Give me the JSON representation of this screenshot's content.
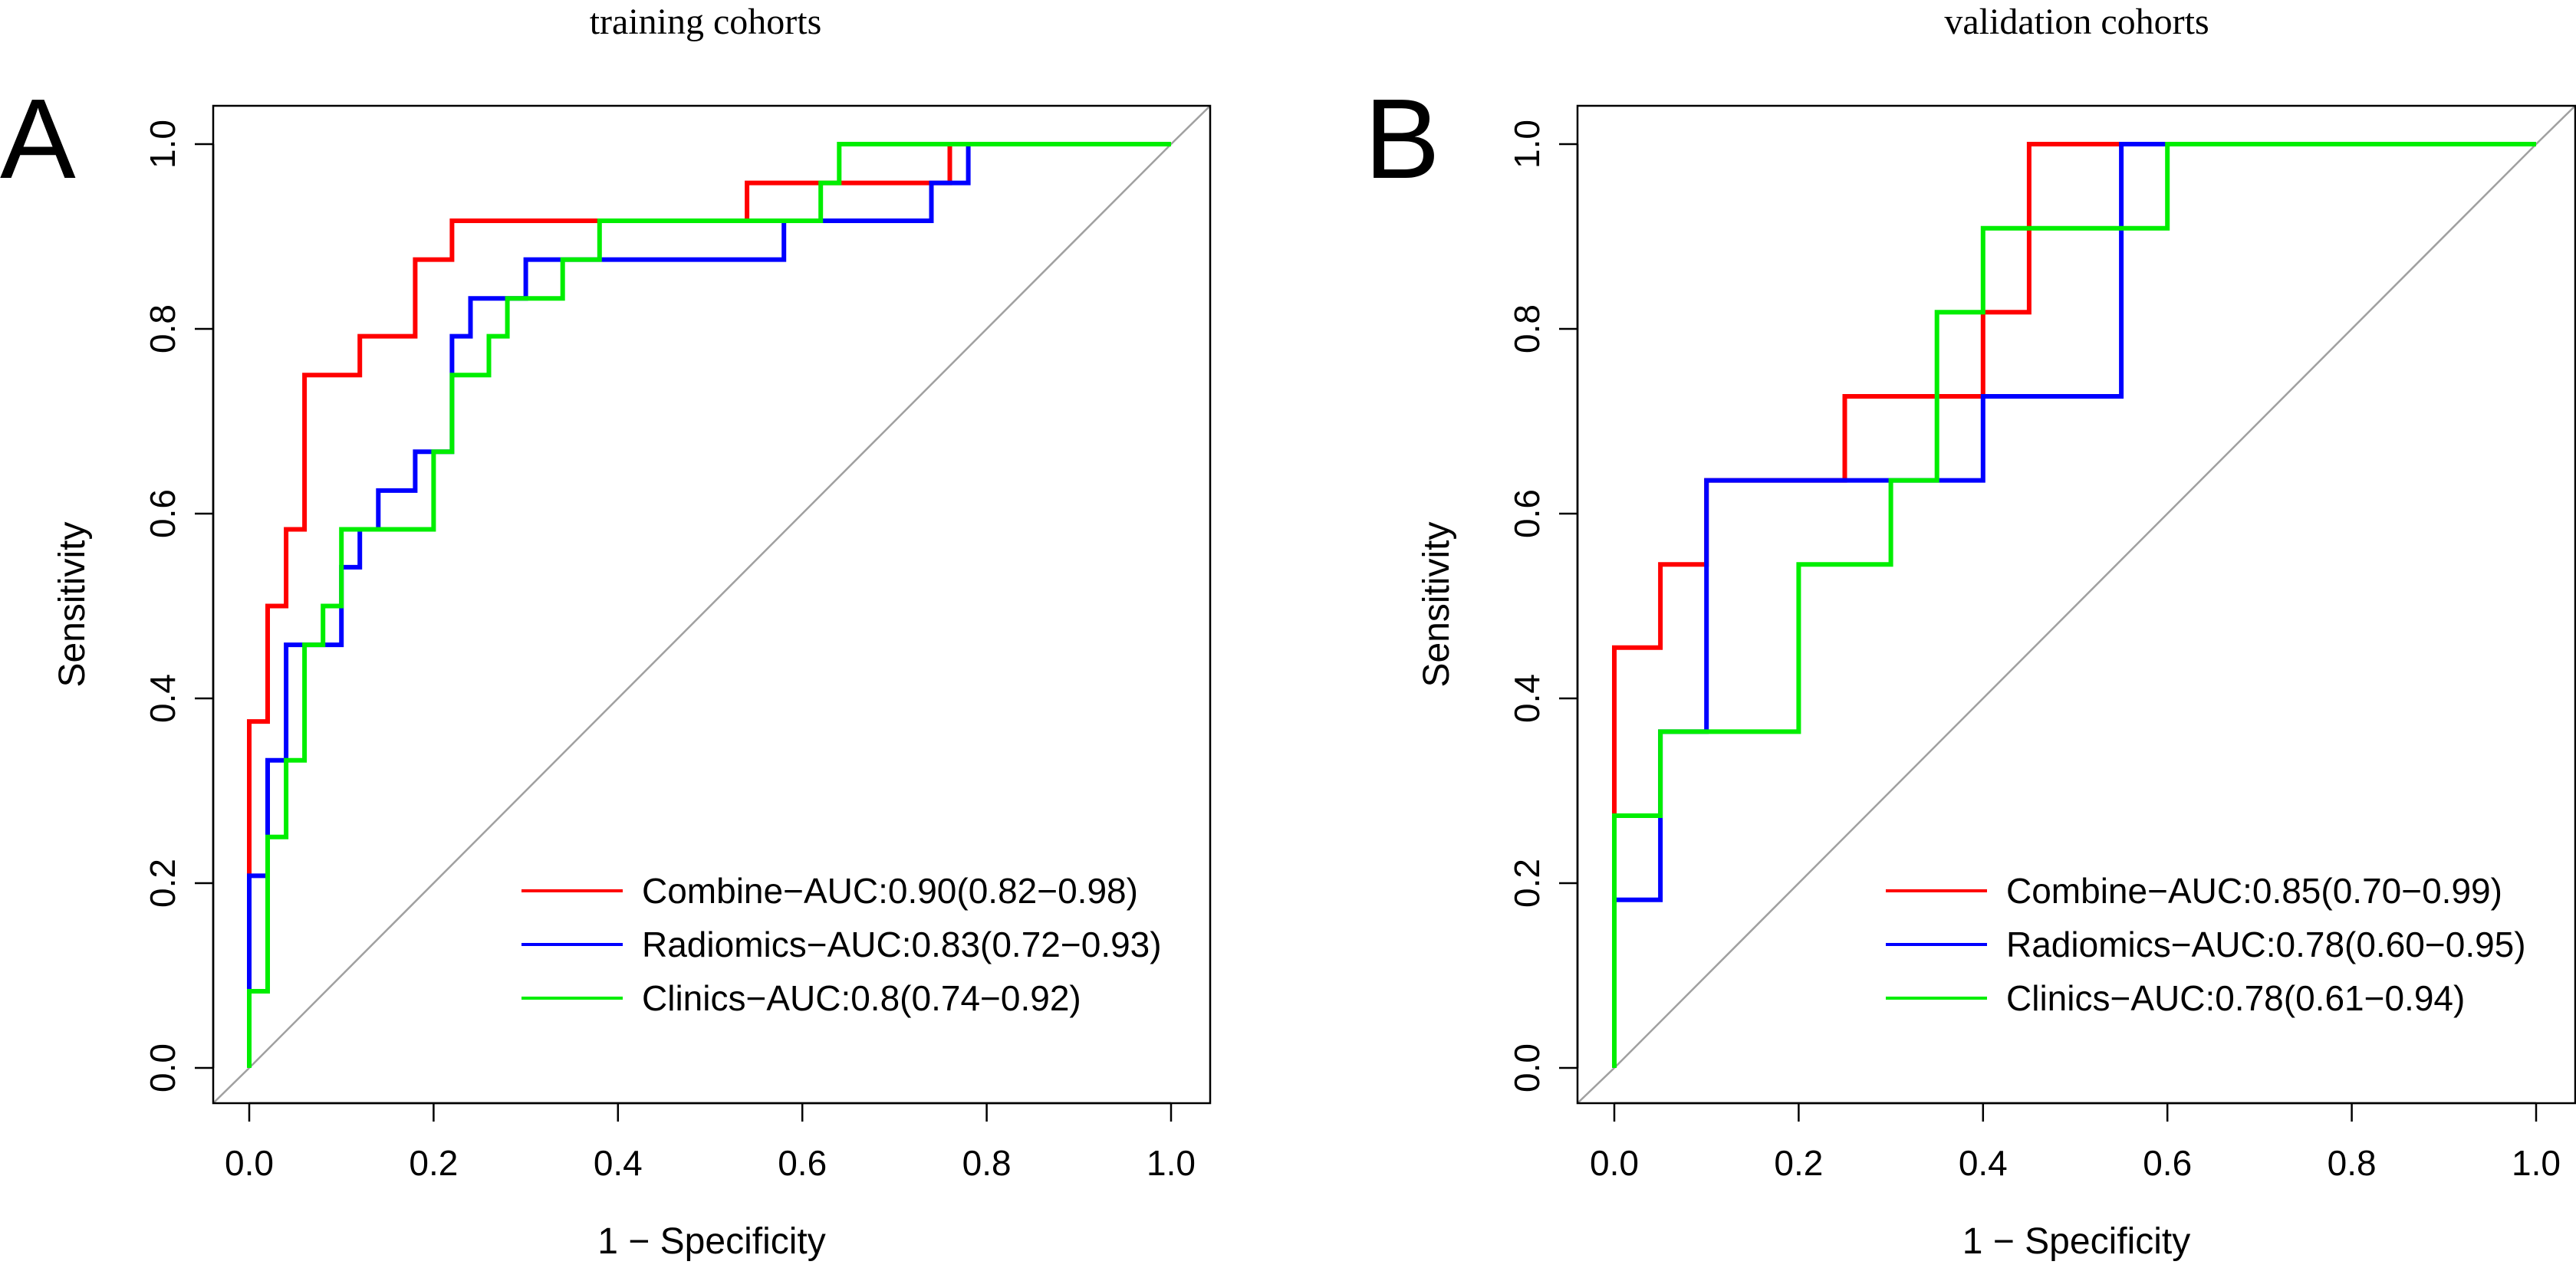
{
  "chart_data": [
    {
      "type": "line",
      "panel_letter": "A",
      "title": "training cohorts",
      "xlabel": "1 − Specificity",
      "ylabel": "Sensitivity",
      "xlim": [
        0,
        1
      ],
      "ylim": [
        0,
        1
      ],
      "xticks": [
        "0.0",
        "0.2",
        "0.4",
        "0.6",
        "0.8",
        "1.0"
      ],
      "yticks": [
        "0.0",
        "0.2",
        "0.4",
        "0.6",
        "0.8",
        "1.0"
      ],
      "legend_position": "bottom-right",
      "colors": {
        "Combine": "#ff0000",
        "Radiomics": "#0000ff",
        "Clinics": "#00ee00",
        "diagonal": "#a0a0a0"
      },
      "series": [
        {
          "name": "Combine",
          "legend_label": "Combine−AUC:0.90(0.82−0.98)",
          "x": [
            0,
            0,
            0.02,
            0.02,
            0.04,
            0.04,
            0.06,
            0.06,
            0.12,
            0.12,
            0.18,
            0.18,
            0.22,
            0.22,
            0.54,
            0.54,
            0.76,
            0.76,
            1
          ],
          "y": [
            0,
            0.375,
            0.375,
            0.5,
            0.5,
            0.583,
            0.583,
            0.75,
            0.75,
            0.792,
            0.792,
            0.875,
            0.875,
            0.917,
            0.917,
            0.958,
            0.958,
            1,
            1
          ]
        },
        {
          "name": "Radiomics",
          "legend_label": "Radiomics−AUC:0.83(0.72−0.93)",
          "x": [
            0,
            0,
            0.02,
            0.02,
            0.04,
            0.04,
            0.1,
            0.1,
            0.12,
            0.12,
            0.14,
            0.14,
            0.18,
            0.18,
            0.22,
            0.22,
            0.24,
            0.24,
            0.3,
            0.3,
            0.58,
            0.58,
            0.74,
            0.74,
            0.78,
            0.78,
            1
          ],
          "y": [
            0,
            0.208,
            0.208,
            0.333,
            0.333,
            0.458,
            0.458,
            0.542,
            0.542,
            0.583,
            0.583,
            0.625,
            0.625,
            0.667,
            0.667,
            0.792,
            0.792,
            0.833,
            0.833,
            0.875,
            0.875,
            0.917,
            0.917,
            0.958,
            0.958,
            1,
            1
          ]
        },
        {
          "name": "Clinics",
          "legend_label": "Clinics−AUC:0.8(0.74−0.92)",
          "x": [
            0,
            0,
            0.02,
            0.02,
            0.04,
            0.04,
            0.06,
            0.06,
            0.08,
            0.08,
            0.1,
            0.1,
            0.2,
            0.2,
            0.22,
            0.22,
            0.26,
            0.26,
            0.28,
            0.28,
            0.34,
            0.34,
            0.38,
            0.38,
            0.62,
            0.62,
            0.64,
            0.64,
            1
          ],
          "y": [
            0,
            0.083,
            0.083,
            0.25,
            0.25,
            0.333,
            0.333,
            0.458,
            0.458,
            0.5,
            0.5,
            0.583,
            0.583,
            0.667,
            0.667,
            0.75,
            0.75,
            0.792,
            0.792,
            0.833,
            0.833,
            0.875,
            0.875,
            0.917,
            0.917,
            0.958,
            0.958,
            1,
            1
          ]
        }
      ]
    },
    {
      "type": "line",
      "panel_letter": "B",
      "title": "validation cohorts",
      "xlabel": "1 − Specificity",
      "ylabel": "Sensitivity",
      "xlim": [
        0,
        1
      ],
      "ylim": [
        0,
        1
      ],
      "xticks": [
        "0.0",
        "0.2",
        "0.4",
        "0.6",
        "0.8",
        "1.0"
      ],
      "yticks": [
        "0.0",
        "0.2",
        "0.4",
        "0.6",
        "0.8",
        "1.0"
      ],
      "legend_position": "bottom-right",
      "colors": {
        "Combine": "#ff0000",
        "Radiomics": "#0000ff",
        "Clinics": "#00ee00",
        "diagonal": "#a0a0a0"
      },
      "series": [
        {
          "name": "Combine",
          "legend_label": "Combine−AUC:0.85(0.70−0.99)",
          "x": [
            0,
            0,
            0.05,
            0.05,
            0.1,
            0.1,
            0.25,
            0.25,
            0.4,
            0.4,
            0.45,
            0.45,
            1
          ],
          "y": [
            0,
            0.455,
            0.455,
            0.545,
            0.545,
            0.636,
            0.636,
            0.727,
            0.727,
            0.818,
            0.818,
            1,
            1
          ]
        },
        {
          "name": "Radiomics",
          "legend_label": "Radiomics−AUC:0.78(0.60−0.95)",
          "x": [
            0,
            0,
            0.05,
            0.05,
            0.1,
            0.1,
            0.4,
            0.4,
            0.55,
            0.55,
            1
          ],
          "y": [
            0,
            0.182,
            0.182,
            0.364,
            0.364,
            0.636,
            0.636,
            0.727,
            0.727,
            1,
            1
          ]
        },
        {
          "name": "Clinics",
          "legend_label": "Clinics−AUC:0.78(0.61−0.94)",
          "x": [
            0,
            0,
            0.05,
            0.05,
            0.2,
            0.2,
            0.3,
            0.3,
            0.35,
            0.35,
            0.4,
            0.4,
            0.6,
            0.6,
            1
          ],
          "y": [
            0,
            0.273,
            0.273,
            0.364,
            0.364,
            0.545,
            0.545,
            0.636,
            0.636,
            0.818,
            0.818,
            0.909,
            0.909,
            1,
            1
          ]
        }
      ]
    }
  ]
}
